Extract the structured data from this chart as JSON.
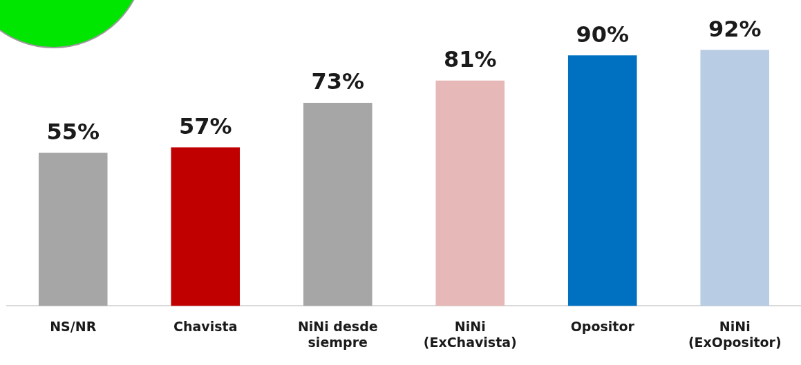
{
  "chart_data": {
    "type": "bar",
    "categories": [
      "NS/NR",
      "Chavista",
      "NiNi desde siempre",
      "NiNi (ExChavista)",
      "Opositor",
      "NiNi (ExOpositor)"
    ],
    "values": [
      55,
      57,
      73,
      81,
      90,
      92
    ],
    "colors": [
      "#a6a6a6",
      "#c00000",
      "#a6a6a6",
      "#e6b8b7",
      "#0070c0",
      "#b8cce4"
    ],
    "value_labels": [
      "55%",
      "57%",
      "73%",
      "81%",
      "90%",
      "92%"
    ],
    "grid": false,
    "legend": false
  }
}
